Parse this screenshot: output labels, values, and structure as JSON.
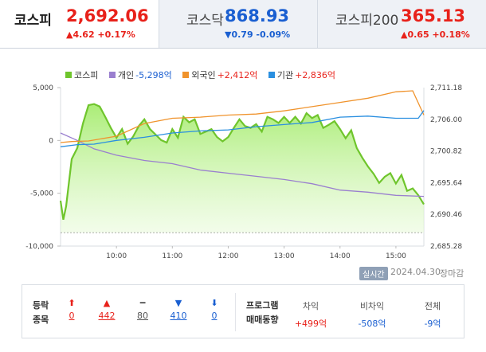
{
  "tabs": [
    {
      "name": "코스피",
      "value": "2,692.06",
      "change": "▲4.62 +0.17%",
      "dir": "up",
      "active": true
    },
    {
      "name": "코스닥",
      "value": "868.93",
      "change": "▼0.79 -0.09%",
      "dir": "down",
      "active": false
    },
    {
      "name": "코스피200",
      "value": "365.13",
      "change": "▲0.65 +0.18%",
      "dir": "up",
      "active": false
    }
  ],
  "legend": [
    {
      "label": "코스피",
      "value": "",
      "color": "#6fc52c"
    },
    {
      "label": "개인",
      "value": "-5,298억",
      "color": "#9a7fcf"
    },
    {
      "label": "외국인",
      "value": "+2,412억",
      "color": "#f0932c"
    },
    {
      "label": "기관",
      "value": "+2,836억",
      "color": "#2a8fe0"
    }
  ],
  "chart_data": {
    "type": "line",
    "x_ticks": [
      "10:00",
      "11:00",
      "12:00",
      "13:00",
      "14:00",
      "15:00"
    ],
    "y_left_ticks": [
      "5,000",
      "0",
      "-5,000",
      "-10,000"
    ],
    "y_left_range": [
      -10000,
      5000
    ],
    "y_right_ticks": [
      "2,711.18",
      "2,706.00",
      "2,700.82",
      "2,695.64",
      "2,690.46",
      "2,685.28"
    ],
    "y_right_range": [
      2685.28,
      2711.18
    ],
    "x_range_hours": [
      9.0,
      15.5
    ],
    "series": [
      {
        "name": "코스피",
        "color": "#6fc52c",
        "values": [
          [
            9.0,
            2692.7
          ],
          [
            9.05,
            2689.6
          ],
          [
            9.1,
            2691.8
          ],
          [
            9.2,
            2699.5
          ],
          [
            9.3,
            2701.3
          ],
          [
            9.4,
            2705.3
          ],
          [
            9.5,
            2708.3
          ],
          [
            9.6,
            2708.5
          ],
          [
            9.7,
            2708.1
          ],
          [
            9.8,
            2706.4
          ],
          [
            9.9,
            2704.6
          ],
          [
            10.0,
            2703.0
          ],
          [
            10.1,
            2704.4
          ],
          [
            10.2,
            2702.0
          ],
          [
            10.3,
            2703.2
          ],
          [
            10.4,
            2704.9
          ],
          [
            10.5,
            2706.0
          ],
          [
            10.6,
            2704.4
          ],
          [
            10.7,
            2703.5
          ],
          [
            10.8,
            2702.6
          ],
          [
            10.9,
            2702.2
          ],
          [
            11.0,
            2704.4
          ],
          [
            11.1,
            2703.0
          ],
          [
            11.2,
            2706.4
          ],
          [
            11.3,
            2705.5
          ],
          [
            11.4,
            2706.0
          ],
          [
            11.5,
            2703.6
          ],
          [
            11.6,
            2704.0
          ],
          [
            11.7,
            2704.4
          ],
          [
            11.8,
            2703.1
          ],
          [
            11.9,
            2702.4
          ],
          [
            12.0,
            2703.1
          ],
          [
            12.1,
            2704.6
          ],
          [
            12.2,
            2706.0
          ],
          [
            12.3,
            2704.9
          ],
          [
            12.4,
            2704.6
          ],
          [
            12.5,
            2705.2
          ],
          [
            12.6,
            2704.0
          ],
          [
            12.7,
            2706.4
          ],
          [
            12.8,
            2706.0
          ],
          [
            12.9,
            2705.4
          ],
          [
            13.0,
            2706.4
          ],
          [
            13.1,
            2705.4
          ],
          [
            13.2,
            2706.4
          ],
          [
            13.3,
            2705.3
          ],
          [
            13.4,
            2707.0
          ],
          [
            13.5,
            2706.2
          ],
          [
            13.6,
            2706.7
          ],
          [
            13.7,
            2704.6
          ],
          [
            13.8,
            2705.1
          ],
          [
            13.9,
            2705.7
          ],
          [
            14.0,
            2704.4
          ],
          [
            14.1,
            2702.9
          ],
          [
            14.2,
            2704.2
          ],
          [
            14.3,
            2701.3
          ],
          [
            14.4,
            2699.7
          ],
          [
            14.5,
            2698.3
          ],
          [
            14.6,
            2697.1
          ],
          [
            14.7,
            2695.6
          ],
          [
            14.8,
            2696.6
          ],
          [
            14.9,
            2697.2
          ],
          [
            15.0,
            2695.5
          ],
          [
            15.1,
            2696.9
          ],
          [
            15.2,
            2694.3
          ],
          [
            15.3,
            2694.7
          ],
          [
            15.4,
            2693.6
          ],
          [
            15.5,
            2692.1
          ]
        ]
      },
      {
        "name": "개인",
        "color": "#9a7fcf",
        "values": [
          [
            9.0,
            700
          ],
          [
            9.3,
            0
          ],
          [
            9.6,
            -800
          ],
          [
            10.0,
            -1400
          ],
          [
            10.5,
            -1900
          ],
          [
            11.0,
            -2200
          ],
          [
            11.5,
            -2800
          ],
          [
            12.0,
            -3100
          ],
          [
            12.5,
            -3400
          ],
          [
            13.0,
            -3700
          ],
          [
            13.5,
            -4100
          ],
          [
            14.0,
            -4700
          ],
          [
            14.5,
            -4900
          ],
          [
            15.0,
            -5200
          ],
          [
            15.5,
            -5300
          ]
        ]
      },
      {
        "name": "외국인",
        "color": "#f0932c",
        "values": [
          [
            9.0,
            -200
          ],
          [
            9.2,
            -100
          ],
          [
            9.5,
            -50
          ],
          [
            10.0,
            400
          ],
          [
            10.5,
            1600
          ],
          [
            11.0,
            2100
          ],
          [
            11.5,
            2200
          ],
          [
            12.0,
            2400
          ],
          [
            12.5,
            2500
          ],
          [
            13.0,
            2800
          ],
          [
            13.5,
            3200
          ],
          [
            14.0,
            3600
          ],
          [
            14.5,
            4000
          ],
          [
            15.0,
            4600
          ],
          [
            15.3,
            4700
          ],
          [
            15.5,
            2400
          ]
        ]
      },
      {
        "name": "기관",
        "color": "#2a8fe0",
        "values": [
          [
            9.0,
            -600
          ],
          [
            9.3,
            -400
          ],
          [
            9.6,
            -350
          ],
          [
            10.0,
            0
          ],
          [
            10.5,
            300
          ],
          [
            11.0,
            700
          ],
          [
            11.5,
            900
          ],
          [
            12.0,
            1000
          ],
          [
            12.5,
            1300
          ],
          [
            13.0,
            1500
          ],
          [
            13.5,
            1700
          ],
          [
            14.0,
            2200
          ],
          [
            14.5,
            2300
          ],
          [
            15.0,
            2100
          ],
          [
            15.4,
            2100
          ],
          [
            15.5,
            2836
          ]
        ]
      }
    ]
  },
  "meta": {
    "badge": "실시간",
    "date": "2024.04.30",
    "status": "장마감"
  },
  "breadth": {
    "label_line1": "등락",
    "label_line2": "종목",
    "items": [
      {
        "icon": "⬆",
        "value": "0",
        "color": "#e8211a",
        "underline": true
      },
      {
        "icon": "▲",
        "value": "442",
        "color": "#e8211a",
        "underline": true
      },
      {
        "icon": "━",
        "value": "80",
        "color": "#555555",
        "underline": true
      },
      {
        "icon": "▼",
        "value": "410",
        "color": "#1a5fd1",
        "underline": true
      },
      {
        "icon": "⬇",
        "value": "0",
        "color": "#1a5fd1",
        "underline": true
      }
    ]
  },
  "program": {
    "label_line1": "프로그램",
    "label_line2": "매매동향",
    "items": [
      {
        "header": "차익",
        "value": "+499억",
        "color": "#e8211a"
      },
      {
        "header": "비차익",
        "value": "-508억",
        "color": "#1a5fd1"
      },
      {
        "header": "전체",
        "value": "-9억",
        "color": "#1a5fd1"
      }
    ]
  }
}
